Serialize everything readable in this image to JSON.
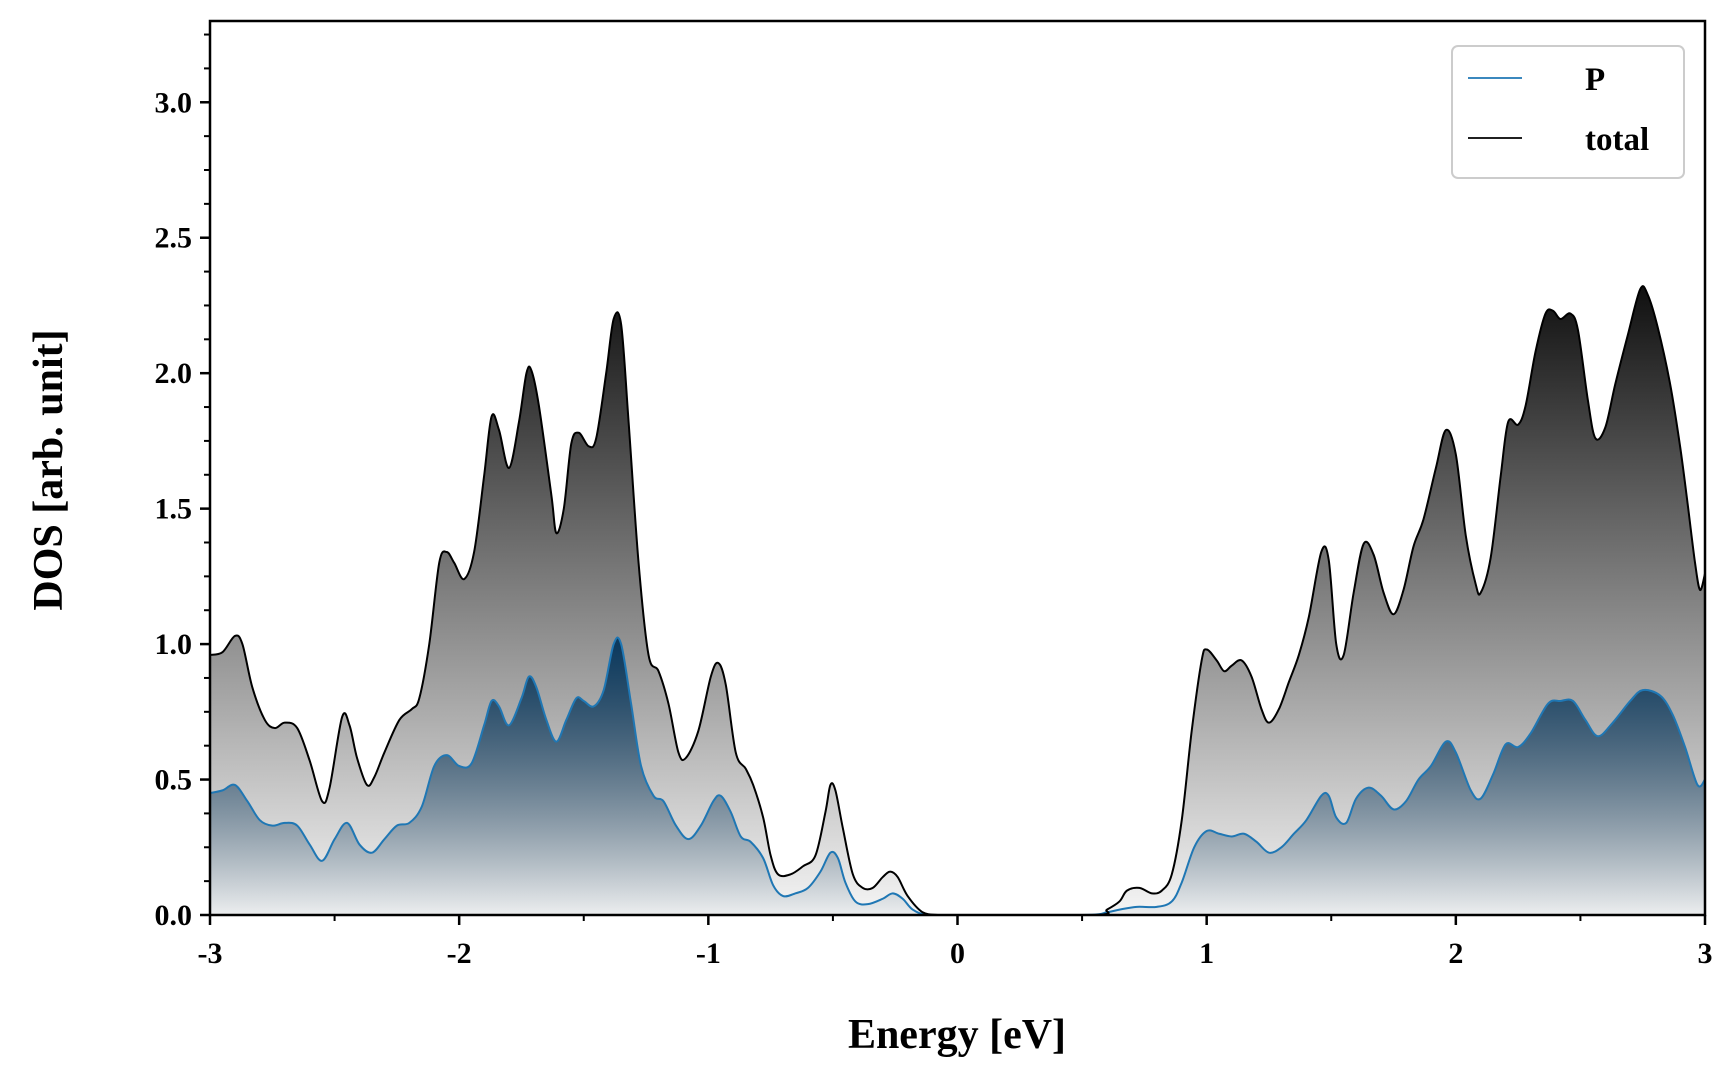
{
  "chart_data": {
    "type": "area",
    "title": "",
    "xlabel": "Energy [eV]",
    "ylabel": "DOS [arb. unit]",
    "xlim": [
      -3,
      3
    ],
    "ylim": [
      0,
      3.3
    ],
    "xticks": [
      -3,
      -2,
      -1,
      0,
      1,
      2,
      3
    ],
    "xtick_labels": [
      "-3",
      "-2",
      "-1",
      "0",
      "1",
      "2",
      "3"
    ],
    "yticks": [
      0.0,
      0.5,
      1.0,
      1.5,
      2.0,
      2.5,
      3.0
    ],
    "ytick_labels": [
      "0.0",
      "0.5",
      "1.0",
      "1.5",
      "2.0",
      "2.5",
      "3.0"
    ],
    "x_minor_step": 0.5,
    "y_minor_step": 0.125,
    "grid": false,
    "legend_position": "top-right",
    "series": [
      {
        "name": "P",
        "color": "#1f77b4",
        "fill_top": "#0d3a5e",
        "points": [
          [
            -3.0,
            0.45
          ],
          [
            -2.95,
            0.46
          ],
          [
            -2.9,
            0.48
          ],
          [
            -2.85,
            0.42
          ],
          [
            -2.8,
            0.35
          ],
          [
            -2.75,
            0.33
          ],
          [
            -2.7,
            0.34
          ],
          [
            -2.65,
            0.33
          ],
          [
            -2.6,
            0.26
          ],
          [
            -2.55,
            0.2
          ],
          [
            -2.5,
            0.28
          ],
          [
            -2.45,
            0.34
          ],
          [
            -2.4,
            0.26
          ],
          [
            -2.35,
            0.23
          ],
          [
            -2.3,
            0.28
          ],
          [
            -2.25,
            0.33
          ],
          [
            -2.2,
            0.34
          ],
          [
            -2.15,
            0.4
          ],
          [
            -2.1,
            0.55
          ],
          [
            -2.05,
            0.59
          ],
          [
            -2.0,
            0.55
          ],
          [
            -1.95,
            0.56
          ],
          [
            -1.9,
            0.7
          ],
          [
            -1.87,
            0.79
          ],
          [
            -1.84,
            0.77
          ],
          [
            -1.8,
            0.7
          ],
          [
            -1.75,
            0.8
          ],
          [
            -1.72,
            0.88
          ],
          [
            -1.69,
            0.84
          ],
          [
            -1.65,
            0.72
          ],
          [
            -1.61,
            0.64
          ],
          [
            -1.57,
            0.72
          ],
          [
            -1.53,
            0.8
          ],
          [
            -1.5,
            0.79
          ],
          [
            -1.46,
            0.77
          ],
          [
            -1.42,
            0.83
          ],
          [
            -1.38,
            1.0
          ],
          [
            -1.35,
            1.0
          ],
          [
            -1.31,
            0.78
          ],
          [
            -1.27,
            0.55
          ],
          [
            -1.22,
            0.44
          ],
          [
            -1.18,
            0.42
          ],
          [
            -1.13,
            0.33
          ],
          [
            -1.08,
            0.28
          ],
          [
            -1.03,
            0.33
          ],
          [
            -0.98,
            0.42
          ],
          [
            -0.95,
            0.44
          ],
          [
            -0.91,
            0.38
          ],
          [
            -0.87,
            0.29
          ],
          [
            -0.83,
            0.27
          ],
          [
            -0.78,
            0.21
          ],
          [
            -0.74,
            0.11
          ],
          [
            -0.7,
            0.07
          ],
          [
            -0.65,
            0.08
          ],
          [
            -0.6,
            0.1
          ],
          [
            -0.55,
            0.16
          ],
          [
            -0.51,
            0.23
          ],
          [
            -0.48,
            0.21
          ],
          [
            -0.45,
            0.12
          ],
          [
            -0.41,
            0.05
          ],
          [
            -0.36,
            0.04
          ],
          [
            -0.3,
            0.06
          ],
          [
            -0.26,
            0.08
          ],
          [
            -0.22,
            0.06
          ],
          [
            -0.18,
            0.02
          ],
          [
            -0.12,
            0.0
          ],
          [
            0.0,
            0.0
          ],
          [
            0.5,
            0.0
          ],
          [
            0.6,
            0.01
          ],
          [
            0.65,
            0.02
          ],
          [
            0.72,
            0.03
          ],
          [
            0.8,
            0.03
          ],
          [
            0.86,
            0.05
          ],
          [
            0.9,
            0.12
          ],
          [
            0.95,
            0.25
          ],
          [
            1.0,
            0.31
          ],
          [
            1.05,
            0.3
          ],
          [
            1.1,
            0.29
          ],
          [
            1.15,
            0.3
          ],
          [
            1.2,
            0.27
          ],
          [
            1.25,
            0.23
          ],
          [
            1.3,
            0.25
          ],
          [
            1.35,
            0.3
          ],
          [
            1.4,
            0.35
          ],
          [
            1.46,
            0.44
          ],
          [
            1.49,
            0.44
          ],
          [
            1.52,
            0.36
          ],
          [
            1.56,
            0.34
          ],
          [
            1.6,
            0.43
          ],
          [
            1.65,
            0.47
          ],
          [
            1.7,
            0.44
          ],
          [
            1.75,
            0.39
          ],
          [
            1.8,
            0.42
          ],
          [
            1.85,
            0.5
          ],
          [
            1.9,
            0.55
          ],
          [
            1.96,
            0.64
          ],
          [
            2.0,
            0.6
          ],
          [
            2.06,
            0.46
          ],
          [
            2.1,
            0.43
          ],
          [
            2.15,
            0.52
          ],
          [
            2.2,
            0.63
          ],
          [
            2.25,
            0.62
          ],
          [
            2.3,
            0.67
          ],
          [
            2.37,
            0.78
          ],
          [
            2.42,
            0.79
          ],
          [
            2.47,
            0.79
          ],
          [
            2.52,
            0.72
          ],
          [
            2.57,
            0.66
          ],
          [
            2.63,
            0.71
          ],
          [
            2.7,
            0.79
          ],
          [
            2.75,
            0.83
          ],
          [
            2.82,
            0.81
          ],
          [
            2.87,
            0.74
          ],
          [
            2.92,
            0.62
          ],
          [
            2.97,
            0.48
          ],
          [
            3.0,
            0.5
          ]
        ]
      },
      {
        "name": "total",
        "color": "#000000",
        "fill_top": "#111111",
        "points": [
          [
            -3.0,
            0.96
          ],
          [
            -2.95,
            0.97
          ],
          [
            -2.9,
            1.03
          ],
          [
            -2.87,
            1.0
          ],
          [
            -2.83,
            0.84
          ],
          [
            -2.78,
            0.72
          ],
          [
            -2.74,
            0.69
          ],
          [
            -2.7,
            0.71
          ],
          [
            -2.65,
            0.69
          ],
          [
            -2.6,
            0.57
          ],
          [
            -2.55,
            0.42
          ],
          [
            -2.52,
            0.47
          ],
          [
            -2.47,
            0.73
          ],
          [
            -2.44,
            0.7
          ],
          [
            -2.41,
            0.58
          ],
          [
            -2.37,
            0.48
          ],
          [
            -2.34,
            0.51
          ],
          [
            -2.3,
            0.6
          ],
          [
            -2.24,
            0.72
          ],
          [
            -2.19,
            0.76
          ],
          [
            -2.16,
            0.8
          ],
          [
            -2.12,
            1.0
          ],
          [
            -2.08,
            1.3
          ],
          [
            -2.05,
            1.34
          ],
          [
            -2.02,
            1.3
          ],
          [
            -1.98,
            1.24
          ],
          [
            -1.94,
            1.34
          ],
          [
            -1.9,
            1.62
          ],
          [
            -1.87,
            1.84
          ],
          [
            -1.84,
            1.79
          ],
          [
            -1.8,
            1.65
          ],
          [
            -1.76,
            1.82
          ],
          [
            -1.73,
            2.0
          ],
          [
            -1.71,
            2.01
          ],
          [
            -1.68,
            1.88
          ],
          [
            -1.63,
            1.55
          ],
          [
            -1.61,
            1.41
          ],
          [
            -1.58,
            1.5
          ],
          [
            -1.55,
            1.74
          ],
          [
            -1.52,
            1.78
          ],
          [
            -1.48,
            1.73
          ],
          [
            -1.45,
            1.76
          ],
          [
            -1.41,
            2.0
          ],
          [
            -1.38,
            2.2
          ],
          [
            -1.35,
            2.18
          ],
          [
            -1.32,
            1.82
          ],
          [
            -1.28,
            1.3
          ],
          [
            -1.24,
            0.96
          ],
          [
            -1.2,
            0.9
          ],
          [
            -1.16,
            0.78
          ],
          [
            -1.12,
            0.6
          ],
          [
            -1.09,
            0.58
          ],
          [
            -1.04,
            0.68
          ],
          [
            -0.99,
            0.88
          ],
          [
            -0.96,
            0.93
          ],
          [
            -0.93,
            0.85
          ],
          [
            -0.89,
            0.6
          ],
          [
            -0.85,
            0.54
          ],
          [
            -0.82,
            0.48
          ],
          [
            -0.78,
            0.36
          ],
          [
            -0.75,
            0.22
          ],
          [
            -0.72,
            0.15
          ],
          [
            -0.67,
            0.15
          ],
          [
            -0.62,
            0.18
          ],
          [
            -0.57,
            0.22
          ],
          [
            -0.53,
            0.38
          ],
          [
            -0.51,
            0.48
          ],
          [
            -0.49,
            0.46
          ],
          [
            -0.46,
            0.32
          ],
          [
            -0.42,
            0.15
          ],
          [
            -0.38,
            0.1
          ],
          [
            -0.34,
            0.1
          ],
          [
            -0.3,
            0.14
          ],
          [
            -0.27,
            0.16
          ],
          [
            -0.24,
            0.14
          ],
          [
            -0.2,
            0.07
          ],
          [
            -0.14,
            0.01
          ],
          [
            -0.08,
            0.0
          ],
          [
            0.0,
            0.0
          ],
          [
            0.55,
            0.0
          ],
          [
            0.6,
            0.02
          ],
          [
            0.65,
            0.05
          ],
          [
            0.68,
            0.09
          ],
          [
            0.73,
            0.1
          ],
          [
            0.78,
            0.08
          ],
          [
            0.82,
            0.09
          ],
          [
            0.86,
            0.15
          ],
          [
            0.9,
            0.35
          ],
          [
            0.94,
            0.68
          ],
          [
            0.98,
            0.94
          ],
          [
            1.0,
            0.98
          ],
          [
            1.04,
            0.94
          ],
          [
            1.07,
            0.9
          ],
          [
            1.1,
            0.92
          ],
          [
            1.14,
            0.94
          ],
          [
            1.18,
            0.88
          ],
          [
            1.22,
            0.76
          ],
          [
            1.25,
            0.71
          ],
          [
            1.29,
            0.76
          ],
          [
            1.33,
            0.86
          ],
          [
            1.37,
            0.96
          ],
          [
            1.41,
            1.1
          ],
          [
            1.46,
            1.34
          ],
          [
            1.49,
            1.31
          ],
          [
            1.52,
            1.0
          ],
          [
            1.55,
            0.96
          ],
          [
            1.59,
            1.19
          ],
          [
            1.63,
            1.37
          ],
          [
            1.67,
            1.33
          ],
          [
            1.71,
            1.19
          ],
          [
            1.75,
            1.11
          ],
          [
            1.79,
            1.2
          ],
          [
            1.83,
            1.36
          ],
          [
            1.87,
            1.46
          ],
          [
            1.92,
            1.65
          ],
          [
            1.96,
            1.79
          ],
          [
            2.0,
            1.7
          ],
          [
            2.04,
            1.4
          ],
          [
            2.08,
            1.22
          ],
          [
            2.1,
            1.19
          ],
          [
            2.14,
            1.32
          ],
          [
            2.18,
            1.62
          ],
          [
            2.21,
            1.82
          ],
          [
            2.25,
            1.81
          ],
          [
            2.28,
            1.88
          ],
          [
            2.32,
            2.08
          ],
          [
            2.36,
            2.22
          ],
          [
            2.39,
            2.23
          ],
          [
            2.42,
            2.2
          ],
          [
            2.46,
            2.22
          ],
          [
            2.49,
            2.16
          ],
          [
            2.53,
            1.9
          ],
          [
            2.56,
            1.76
          ],
          [
            2.6,
            1.8
          ],
          [
            2.64,
            1.96
          ],
          [
            2.69,
            2.14
          ],
          [
            2.74,
            2.31
          ],
          [
            2.77,
            2.29
          ],
          [
            2.81,
            2.17
          ],
          [
            2.86,
            1.96
          ],
          [
            2.9,
            1.73
          ],
          [
            2.93,
            1.52
          ],
          [
            2.96,
            1.3
          ],
          [
            2.98,
            1.2
          ],
          [
            3.0,
            1.26
          ]
        ]
      }
    ]
  }
}
